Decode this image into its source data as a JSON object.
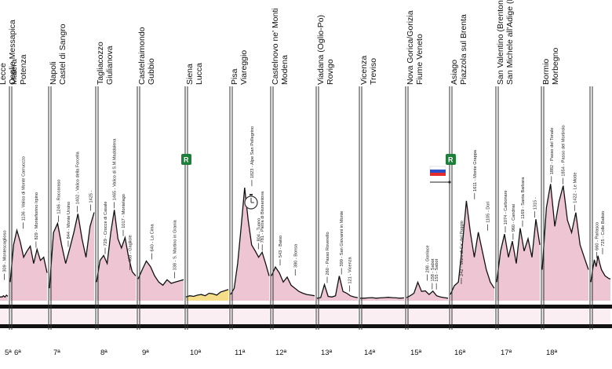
{
  "stages": [
    {
      "number": "5ª",
      "start": "Lecce",
      "finish": "Ceglie Messapica",
      "climbs": [
        {
          "label": "309 - Montescaglioso",
          "dist": 0.55,
          "elev": 309
        }
      ],
      "profile": [
        60,
        60,
        65,
        60,
        70,
        80,
        65,
        60,
        75,
        90,
        80,
        70
      ]
    },
    {
      "number": "6ª",
      "start": "Matera",
      "finish": "Potenza",
      "climbs": [
        {
          "label": "1136 - Valico di Monte Carruozzo",
          "dist": 0.35,
          "elev": 1136
        },
        {
          "label": "829 - Montefiorino Irpino",
          "dist": 0.7,
          "elev": 829
        }
      ],
      "profile": [
        300,
        900,
        1136,
        950,
        700,
        800,
        880,
        600,
        829,
        650,
        700,
        450
      ]
    },
    {
      "number": "7ª",
      "start": "Napoli",
      "finish": "Castel di Sangro",
      "climbs": [
        {
          "label": "1246 - Roccaraso",
          "dist": 0.2,
          "elev": 1246
        },
        {
          "label": "844 - Monte Ursino",
          "dist": 0.42,
          "elev": 844
        },
        {
          "label": "1402 - Valico della Forcella",
          "dist": 0.62,
          "elev": 1402
        },
        {
          "label": "1425 -",
          "dist": 0.92,
          "elev": 1425
        }
      ],
      "profile": [
        200,
        1100,
        1246,
        900,
        600,
        844,
        1100,
        1402,
        1000,
        700,
        1200,
        1425
      ]
    },
    {
      "number": "8ª",
      "start": "Tagliacozzo",
      "finish": "Giulianova",
      "climbs": [
        {
          "label": "729 - Crocce di Casale",
          "dist": 0.22,
          "elev": 729
        },
        {
          "label": "1465 - Valico di S.M.Maddalena",
          "dist": 0.45,
          "elev": 1465
        },
        {
          "label": "1017 - Montelago",
          "dist": 0.68,
          "elev": 1017
        },
        {
          "label": "468 - Gagliole",
          "dist": 0.85,
          "elev": 468
        }
      ],
      "profile": [
        300,
        650,
        729,
        600,
        1100,
        1465,
        1000,
        850,
        1017,
        700,
        468,
        400
      ]
    },
    {
      "number": "9ª",
      "start": "Castelraimondo",
      "finish": "Gubbio",
      "climbs": [
        {
          "label": "640 - La Cima",
          "dist": 0.3,
          "elev": 640
        },
        {
          "label": "338 - S. Martino in Grania",
          "dist": 0.8,
          "elev": 338
        }
      ],
      "profile": [
        350,
        500,
        640,
        550,
        400,
        300,
        250,
        338,
        280,
        300,
        320,
        340
      ]
    },
    {
      "number": "10ª",
      "start": "Siena",
      "finish": "Lucca",
      "badge": "R",
      "rest": true,
      "climbs": [],
      "profile": [
        60,
        80,
        70,
        90,
        100,
        80,
        120,
        110,
        90,
        140,
        160,
        180
      ]
    },
    {
      "number": "11ª",
      "start": "Pisa",
      "finish": "Viareggio",
      "climbs": [
        {
          "label": "1823 - Alpe San Pellegrino",
          "dist": 0.55,
          "elev": 1823
        },
        {
          "label": "804 - Tuano",
          "dist": 0.72,
          "elev": 804
        },
        {
          "label": "781 - Pietra di Bismantova",
          "dist": 0.82,
          "elev": 781
        }
      ],
      "profile": [
        100,
        200,
        600,
        1200,
        1823,
        1300,
        900,
        804,
        700,
        781,
        600,
        400
      ]
    },
    {
      "number": "12ª",
      "start": "Castelnovo ne' Monti",
      "finish": "Modena",
      "climbs": [
        {
          "label": "543 - Baiso",
          "dist": 0.2,
          "elev": 543
        },
        {
          "label": "380 - Bonsa",
          "dist": 0.55,
          "elev": 380
        }
      ],
      "profile": [
        400,
        543,
        450,
        300,
        380,
        250,
        200,
        150,
        120,
        100,
        90,
        80
      ]
    },
    {
      "number": "13ª",
      "start": "Viadana (Oglio-Po)",
      "finish": "Rovigo",
      "climbs": [
        {
          "label": "260 - Passo Roverello",
          "dist": 0.25,
          "elev": 260
        },
        {
          "label": "399 - San Giovanni in Monte",
          "dist": 0.6,
          "elev": 399
        },
        {
          "label": "121 - Vicenza",
          "dist": 0.8,
          "elev": 121
        }
      ],
      "profile": [
        40,
        50,
        260,
        70,
        60,
        80,
        399,
        150,
        121,
        80,
        60,
        50
      ]
    },
    {
      "number": "14ª",
      "start": "Vicenza",
      "finish": "Treviso",
      "climbs": [],
      "profile": [
        40,
        40,
        45,
        50,
        40,
        45,
        50,
        55,
        50,
        45,
        40,
        45
      ]
    },
    {
      "number": "15ª",
      "start": "Nova Gorica/Gorizia",
      "finish": "Fiume Veneto",
      "flag": true,
      "climbs": [
        {
          "label": "298 - Gonlace",
          "dist": 0.5,
          "elev": 298
        },
        {
          "label": "158 - Sabot",
          "dist": 0.62,
          "elev": 158
        },
        {
          "label": "155 - Sabot",
          "dist": 0.72,
          "elev": 155
        }
      ],
      "profile": [
        50,
        80,
        120,
        298,
        150,
        158,
        100,
        155,
        80,
        60,
        50,
        40
      ]
    },
    {
      "number": "16ª",
      "start": "Asiago",
      "finish": "Piazzola sul Brenta",
      "badge": "R",
      "climbs": [
        {
          "label": "242 - Muro di Ca' del Poggio",
          "dist": 0.25,
          "elev": 242
        },
        {
          "label": "1611 - Monte Grappa",
          "dist": 0.55,
          "elev": 1611
        },
        {
          "label": "1105 - Dori",
          "dist": 0.85,
          "elev": 1105
        }
      ],
      "profile": [
        100,
        242,
        300,
        900,
        1611,
        1100,
        700,
        1105,
        800,
        500,
        300,
        200
      ]
    },
    {
      "number": "17ª",
      "start": "San Valentino (Brentonico)",
      "finish": "San Michele all'Adige (Fondazione Edmund Mach)",
      "climbs": [
        {
          "label": "1074 - Carbonare",
          "dist": 0.2,
          "elev": 1074
        },
        {
          "label": "960 - Candriai",
          "dist": 0.38,
          "elev": 960
        },
        {
          "label": "1169 - Santa Barbara",
          "dist": 0.6,
          "elev": 1169
        },
        {
          "label": "1315 -",
          "dist": 0.88,
          "elev": 1315
        }
      ],
      "profile": [
        300,
        800,
        1074,
        700,
        960,
        600,
        1169,
        800,
        1000,
        700,
        1315,
        900
      ]
    },
    {
      "number": "18ª",
      "start": "Bormio",
      "finish": "Morbegno",
      "climbs": [
        {
          "label": "1882 - Passo del Tonale",
          "dist": 0.2,
          "elev": 1882
        },
        {
          "label": "1854 - Passo del Mortirolo",
          "dist": 0.45,
          "elev": 1854
        },
        {
          "label": "1422 - Le Motte",
          "dist": 0.7,
          "elev": 1422
        }
      ],
      "profile": [
        500,
        1500,
        1882,
        1200,
        1600,
        1854,
        1300,
        1100,
        1422,
        900,
        700,
        500
      ]
    },
    {
      "number": "",
      "start": "",
      "finish": "",
      "climbs": [
        {
          "label": "660 - Parlasco",
          "dist": 0.3,
          "elev": 660
        },
        {
          "label": "725 - Colle Balisio",
          "dist": 0.6,
          "elev": 725
        }
      ],
      "profile": [
        300,
        500,
        660,
        550,
        725,
        600,
        500,
        450,
        400,
        380,
        360,
        350
      ]
    }
  ],
  "colors": {
    "fill": "#eec6d3",
    "fill_rest": "#f5dd8a",
    "badge": "#1e7f3a",
    "bar": "#111111"
  }
}
